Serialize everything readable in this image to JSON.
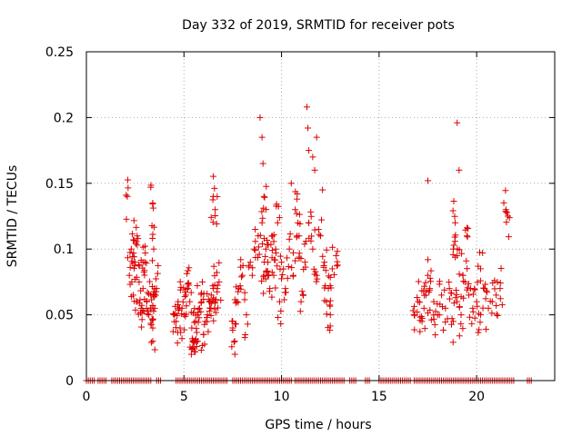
{
  "chart_data": {
    "type": "scatter",
    "title": "Day 332 of 2019, SRMTID for receiver pots",
    "xlabel": "GPS time / hours",
    "ylabel": "SRMTID / TECUs",
    "xlim": [
      0,
      24
    ],
    "ylim": [
      0,
      0.25
    ],
    "x_ticks": [
      0,
      5,
      10,
      15,
      20
    ],
    "y_ticks": [
      0,
      0.05,
      0.1,
      0.15,
      0.2,
      0.25
    ],
    "x_tick_labels": [
      "0",
      "5",
      "10",
      "15",
      "20"
    ],
    "y_tick_labels": [
      "0",
      "0.05",
      "0.1",
      "0.15",
      "0.2",
      "0.25"
    ],
    "grid": true,
    "marker": "+",
    "marker_color": "#dd0000",
    "series": [
      {
        "name": "SRMTID",
        "x": [
          2.2,
          2.3,
          2.4,
          2.5,
          2.6,
          2.7,
          2.8,
          2.9,
          3.0,
          3.1,
          3.2,
          3.3,
          3.4,
          3.5,
          3.6,
          2.1,
          2.4,
          2.6,
          2.9,
          3.3,
          3.4,
          3.5,
          3.4,
          3.45,
          4.5,
          4.6,
          4.7,
          4.8,
          4.9,
          5.0,
          5.1,
          5.2,
          5.3,
          5.4,
          5.5,
          5.6,
          5.7,
          5.8,
          5.9,
          6.0,
          6.1,
          6.2,
          6.3,
          6.4,
          6.5,
          6.6,
          6.7,
          6.8,
          5.5,
          5.7,
          6.5,
          6.6,
          7.5,
          7.6,
          7.7,
          7.8,
          8.0,
          8.2,
          8.4,
          8.6,
          8.8,
          9.0,
          9.1,
          9.2,
          9.3,
          9.4,
          9.5,
          9.6,
          9.7,
          9.8,
          9.9,
          10.0,
          10.2,
          10.4,
          10.6,
          10.8,
          11.0,
          11.2,
          11.4,
          11.6,
          11.8,
          12.0,
          12.2,
          12.4,
          12.6,
          12.8,
          8.9,
          9.0,
          9.05,
          9.1,
          11.3,
          11.35,
          11.4,
          11.6,
          11.7,
          11.8,
          12.1,
          10.5,
          10.7,
          10.9,
          12.3,
          12.5,
          16.8,
          17.0,
          17.2,
          17.3,
          17.4,
          17.5,
          17.6,
          17.8,
          18.0,
          18.2,
          18.4,
          18.6,
          18.8,
          19.0,
          19.2,
          19.4,
          19.6,
          19.8,
          20.0,
          20.2,
          20.4,
          20.6,
          20.8,
          21.0,
          21.2,
          17.5,
          18.8,
          18.9,
          19.0,
          19.3,
          19.5,
          21.5,
          21.6,
          19.0,
          19.1,
          20.2
        ],
        "y": [
          0.08,
          0.1,
          0.065,
          0.09,
          0.06,
          0.075,
          0.055,
          0.07,
          0.09,
          0.06,
          0.05,
          0.065,
          0.04,
          0.055,
          0.07,
          0.14,
          0.107,
          0.11,
          0.09,
          0.147,
          0.135,
          0.07,
          0.03,
          0.1,
          0.05,
          0.045,
          0.06,
          0.04,
          0.055,
          0.05,
          0.065,
          0.07,
          0.06,
          0.04,
          0.03,
          0.045,
          0.05,
          0.055,
          0.06,
          0.035,
          0.045,
          0.05,
          0.06,
          0.065,
          0.07,
          0.06,
          0.07,
          0.075,
          0.025,
          0.03,
          0.14,
          0.13,
          0.04,
          0.03,
          0.06,
          0.07,
          0.08,
          0.05,
          0.09,
          0.1,
          0.11,
          0.12,
          0.08,
          0.1,
          0.09,
          0.07,
          0.11,
          0.08,
          0.1,
          0.12,
          0.06,
          0.09,
          0.07,
          0.1,
          0.08,
          0.11,
          0.06,
          0.09,
          0.12,
          0.1,
          0.08,
          0.11,
          0.09,
          0.07,
          0.085,
          0.095,
          0.2,
          0.185,
          0.165,
          0.14,
          0.208,
          0.192,
          0.175,
          0.17,
          0.16,
          0.185,
          0.145,
          0.15,
          0.13,
          0.11,
          0.06,
          0.05,
          0.05,
          0.06,
          0.045,
          0.055,
          0.065,
          0.08,
          0.07,
          0.06,
          0.05,
          0.065,
          0.055,
          0.07,
          0.045,
          0.06,
          0.05,
          0.075,
          0.065,
          0.055,
          0.06,
          0.05,
          0.07,
          0.055,
          0.06,
          0.065,
          0.07,
          0.152,
          0.1,
          0.12,
          0.095,
          0.08,
          0.11,
          0.13,
          0.125,
          0.196,
          0.16,
          0.085
        ]
      }
    ],
    "zero_series": {
      "name": "zero values",
      "y": 0,
      "x_ranges": [
        [
          0.0,
          0.4
        ],
        [
          0.6,
          1.0
        ],
        [
          1.3,
          3.3
        ],
        [
          3.6,
          3.8
        ],
        [
          4.6,
          7.2
        ],
        [
          7.5,
          8.0
        ],
        [
          8.1,
          10.5
        ],
        [
          10.7,
          13.2
        ],
        [
          13.5,
          13.8
        ],
        [
          14.3,
          14.5
        ],
        [
          15.0,
          15.2
        ],
        [
          15.3,
          16.6
        ],
        [
          16.8,
          21.9
        ],
        [
          22.6,
          22.8
        ]
      ],
      "step": 0.1
    }
  }
}
